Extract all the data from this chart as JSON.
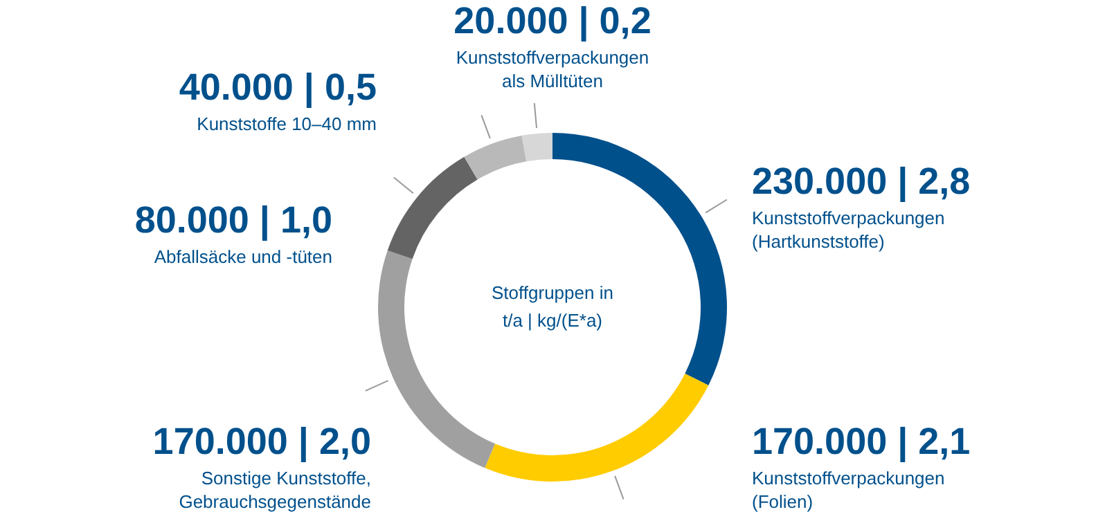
{
  "chart_data": {
    "type": "donut",
    "categories": [
      "Kunststoffverpackungen\n(Hartkunststoffe)",
      "Kunststoffverpackungen\n(Folien)",
      "Sonstige Kunststoffe,\nGebrauchsgegenstände",
      "Abfallsäcke und -tüten",
      "Kunststoffe 10–40 mm",
      "Kunststoffverpackungen\nals Mülltüten"
    ],
    "values": [
      230000,
      170000,
      170000,
      80000,
      40000,
      20000
    ],
    "value_labels": [
      "230.000  |  2,8",
      "170.000  |  2,1",
      "170.000  |  2,0",
      "80.000  |  1,0",
      "40.000  |  0,5",
      "20.000  |  0,2"
    ],
    "colors": [
      "#00508c",
      "#ffcc00",
      "#a0a0a0",
      "#646464",
      "#b9b9b9",
      "#d7d7d7"
    ],
    "annotations": [
      "Stoffgruppen in",
      "t/a  |  kg/(E*a)"
    ]
  }
}
